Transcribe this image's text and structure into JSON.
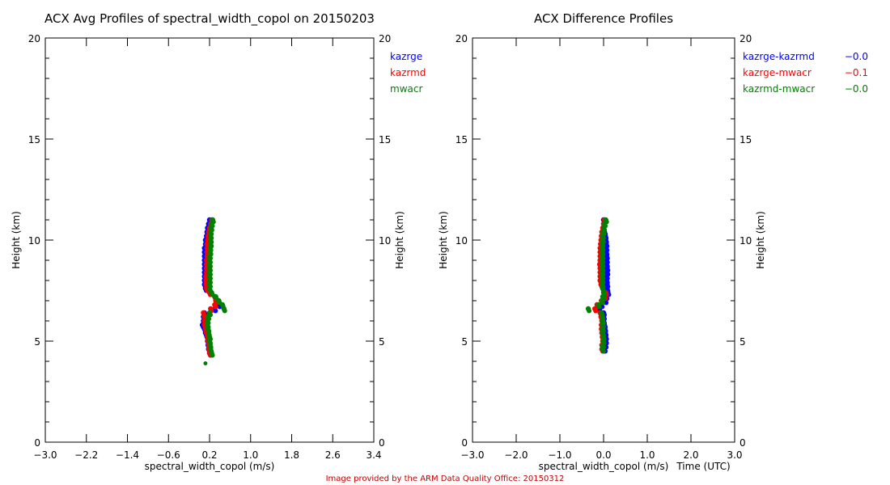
{
  "chart_data": [
    {
      "type": "scatter",
      "title": "ACX Avg Profiles of spectral_width_copol on 20150203",
      "xlabel": "spectral_width_copol (m/s)",
      "ylabel": "Height (km)",
      "ylabel_right": "Height (km)",
      "xlim": [
        -3.0,
        3.4
      ],
      "ylim": [
        0,
        20
      ],
      "xticks": [
        "-3.0",
        "-2.2",
        "-1.4",
        "-0.6",
        "0.2",
        "1.0",
        "1.8",
        "2.6",
        "3.4"
      ],
      "yticks": [
        "0",
        "5",
        "10",
        "15",
        "20"
      ],
      "grid": false,
      "legend_placement": "top-right outside",
      "heights": [
        4.4,
        4.6,
        4.8,
        5.0,
        5.2,
        5.4,
        5.6,
        5.8,
        6.0,
        6.2,
        6.4,
        6.6,
        6.8,
        7.0,
        7.2,
        7.4,
        7.6,
        7.8,
        8.0,
        8.2,
        8.4,
        8.6,
        8.8,
        9.0,
        9.2,
        9.4,
        9.6,
        9.8,
        10.0,
        10.2,
        10.4,
        10.6,
        10.8,
        11.0
      ],
      "series": [
        {
          "name": "kazrge",
          "color": "#0000ff",
          "values": [
            0.2,
            0.18,
            0.17,
            0.16,
            0.15,
            0.12,
            0.1,
            0.06,
            0.08,
            0.08,
            0.1,
            0.3,
            0.38,
            0.35,
            0.3,
            0.2,
            0.12,
            0.1,
            0.1,
            0.1,
            0.1,
            0.1,
            0.1,
            0.1,
            0.1,
            0.1,
            0.1,
            0.12,
            0.12,
            0.14,
            0.15,
            0.16,
            0.18,
            0.2
          ]
        },
        {
          "name": "kazrmd",
          "color": "#ff0000",
          "values": [
            0.2,
            0.19,
            0.18,
            0.17,
            0.16,
            0.14,
            0.12,
            0.1,
            0.1,
            0.1,
            0.08,
            0.22,
            0.3,
            0.32,
            0.3,
            0.2,
            0.14,
            0.13,
            0.13,
            0.13,
            0.14,
            0.14,
            0.14,
            0.14,
            0.15,
            0.15,
            0.15,
            0.15,
            0.16,
            0.17,
            0.18,
            0.2,
            0.22,
            0.24
          ]
        },
        {
          "name": "mwacr",
          "color": "#008000",
          "values": [
            0.24,
            0.22,
            0.21,
            0.2,
            0.2,
            0.18,
            0.17,
            0.16,
            0.16,
            0.17,
            0.2,
            0.48,
            0.45,
            0.38,
            0.32,
            0.24,
            0.2,
            0.2,
            0.2,
            0.2,
            0.2,
            0.2,
            0.2,
            0.2,
            0.2,
            0.21,
            0.21,
            0.22,
            0.22,
            0.22,
            0.22,
            0.23,
            0.24,
            0.26
          ]
        }
      ],
      "extra_points": [
        {
          "series": "mwacr",
          "x": 0.12,
          "height": 3.9
        }
      ]
    },
    {
      "type": "scatter",
      "title": "ACX Difference Profiles",
      "xlabel": "spectral_width_copol (m/s)",
      "xlabel_overlap": "Time (UTC)",
      "ylabel": "Height (km)",
      "ylabel_right": "Height (km)",
      "xlim": [
        -3.0,
        3.0
      ],
      "ylim": [
        0,
        20
      ],
      "xticks": [
        "-3.0",
        "-2.0",
        "-1.0",
        "0.0",
        "1.0",
        "2.0",
        "3.0"
      ],
      "yticks": [
        "0",
        "5",
        "10",
        "15",
        "20"
      ],
      "grid": false,
      "legend_placement": "top-right outside",
      "heights": [
        4.6,
        4.8,
        5.0,
        5.2,
        5.4,
        5.6,
        5.8,
        6.0,
        6.2,
        6.4,
        6.6,
        6.8,
        7.0,
        7.2,
        7.4,
        7.6,
        7.8,
        8.0,
        8.2,
        8.4,
        8.6,
        8.8,
        9.0,
        9.2,
        9.4,
        9.6,
        9.8,
        10.0,
        10.2,
        10.4,
        10.6,
        10.8,
        11.0
      ],
      "series": [
        {
          "name": "kazrge-kazrmd",
          "mean": "-0.0",
          "color": "#0000ff",
          "values": [
            0.02,
            0.04,
            0.05,
            0.05,
            0.04,
            0.03,
            0.02,
            0.0,
            0.0,
            0.0,
            -0.1,
            -0.05,
            0.04,
            0.06,
            0.1,
            0.08,
            0.08,
            0.07,
            0.07,
            0.08,
            0.08,
            0.07,
            0.07,
            0.07,
            0.06,
            0.06,
            0.06,
            0.05,
            0.04,
            0.02,
            0.0,
            0.0,
            0.0
          ]
        },
        {
          "name": "kazrge-mwacr",
          "mean": "-0.1",
          "color": "#ff0000",
          "values": [
            -0.04,
            -0.04,
            -0.02,
            -0.03,
            -0.04,
            -0.05,
            -0.05,
            -0.04,
            -0.06,
            -0.08,
            -0.2,
            -0.15,
            -0.05,
            0.02,
            0.05,
            -0.02,
            -0.06,
            -0.08,
            -0.08,
            -0.08,
            -0.08,
            -0.09,
            -0.08,
            -0.08,
            -0.08,
            -0.08,
            -0.07,
            -0.06,
            -0.05,
            -0.04,
            -0.02,
            0.0,
            0.02
          ]
        },
        {
          "name": "kazrmd-mwacr",
          "mean": "-0.0",
          "color": "#008000",
          "values": [
            -0.02,
            -0.02,
            -0.01,
            -0.01,
            -0.02,
            -0.02,
            -0.02,
            -0.02,
            -0.03,
            -0.05,
            -0.35,
            -0.12,
            -0.04,
            -0.02,
            0.0,
            -0.02,
            -0.03,
            -0.03,
            -0.03,
            -0.03,
            -0.03,
            -0.03,
            -0.03,
            -0.03,
            -0.03,
            -0.03,
            -0.03,
            -0.02,
            -0.02,
            -0.01,
            0.0,
            0.02,
            0.05
          ]
        }
      ]
    }
  ],
  "credit": "Image provided by the ARM Data Quality Office: 20150312"
}
